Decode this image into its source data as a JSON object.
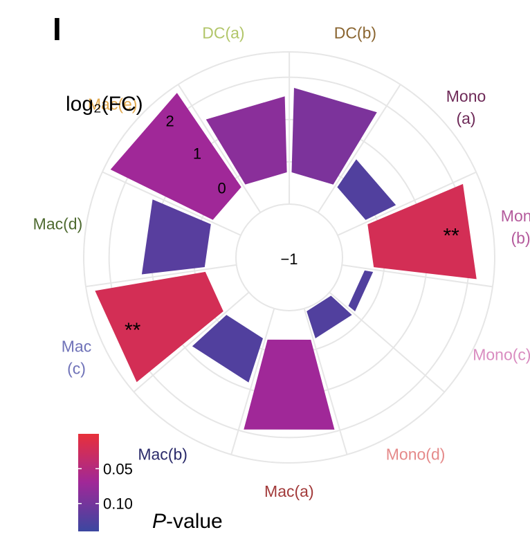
{
  "panel_label": "I",
  "chart_data": {
    "type": "radial-bar",
    "radial_axis_label": "log₂(FC)",
    "radial_ticks": [
      "−1",
      "0",
      "1",
      "2"
    ],
    "radial_tick_values": [
      -1,
      0,
      1,
      2
    ],
    "radial_range": [
      -1,
      2.6
    ],
    "categories": [
      "DC(a)",
      "DC(b)",
      "Mono (a)",
      "Mono (b)",
      "Mono(c)",
      "Mono(d)",
      "Mac(a)",
      "Mac(b)",
      "Mac (c)",
      "Mac(d)",
      "Mac(e)"
    ],
    "category_colors": [
      "#b2c66a",
      "#8a6530",
      "#6e2a58",
      "#b45a9c",
      "#d98cc0",
      "#e58a8a",
      "#a23a3a",
      "#2a2a6a",
      "#6f72b8",
      "#4e6a30",
      "#e2a94e"
    ],
    "values": [
      1.55,
      1.75,
      0.55,
      2.2,
      -0.45,
      -0.92,
      1.95,
      0.85,
      2.4,
      1.25,
      2.45
    ],
    "p_values": [
      0.085,
      0.095,
      0.125,
      0.02,
      0.125,
      0.125,
      0.07,
      0.125,
      0.02,
      0.12,
      0.07
    ],
    "annotations": [
      "",
      "",
      "",
      "**",
      "",
      "",
      "",
      "",
      "**",
      "",
      ""
    ],
    "colorbar": {
      "title_italic": "P",
      "title_rest": "-value",
      "ticks": [
        "0.05",
        "0.10"
      ],
      "tick_values": [
        0.05,
        0.1
      ],
      "range": [
        0.0,
        0.14
      ],
      "colors": [
        "#e8303a",
        "#a02898",
        "#3b47a0"
      ]
    }
  }
}
